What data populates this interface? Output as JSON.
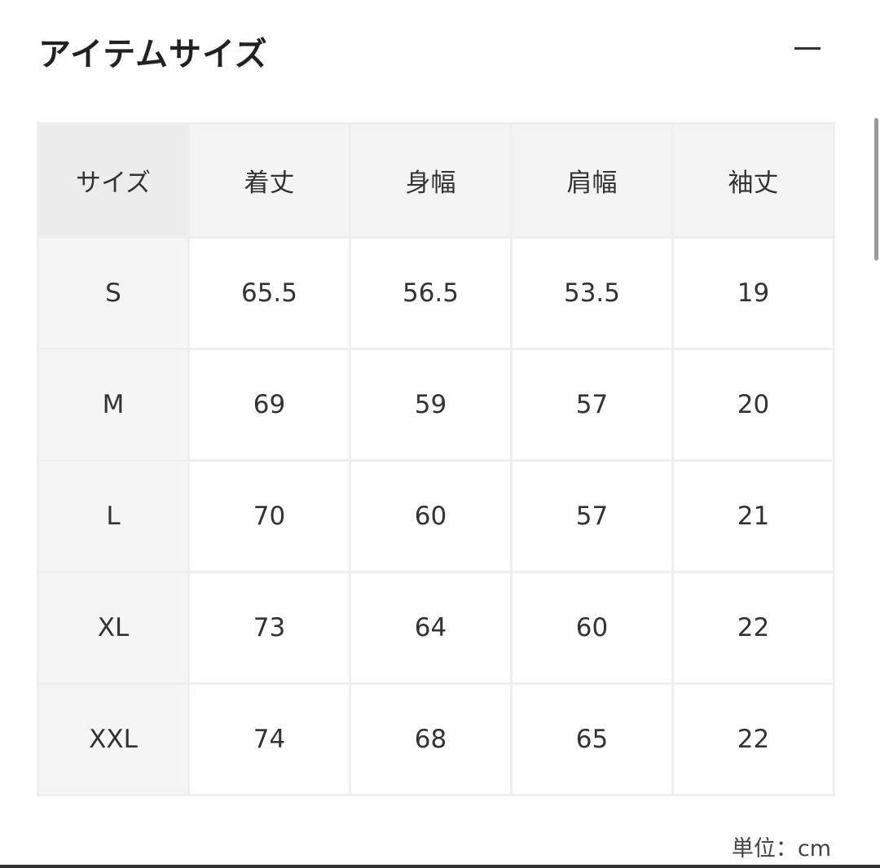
{
  "title": "アイテムサイズ",
  "collapse_icon": "minus-icon",
  "table": {
    "headers": [
      "サイズ",
      "着丈",
      "身幅",
      "肩幅",
      "袖丈"
    ],
    "rows": [
      [
        "S",
        "65.5",
        "56.5",
        "53.5",
        "19"
      ],
      [
        "M",
        "69",
        "59",
        "57",
        "20"
      ],
      [
        "L",
        "70",
        "60",
        "57",
        "21"
      ],
      [
        "XL",
        "73",
        "64",
        "60",
        "22"
      ],
      [
        "XXL",
        "74",
        "68",
        "65",
        "22"
      ]
    ]
  },
  "unit": "単位：cm"
}
